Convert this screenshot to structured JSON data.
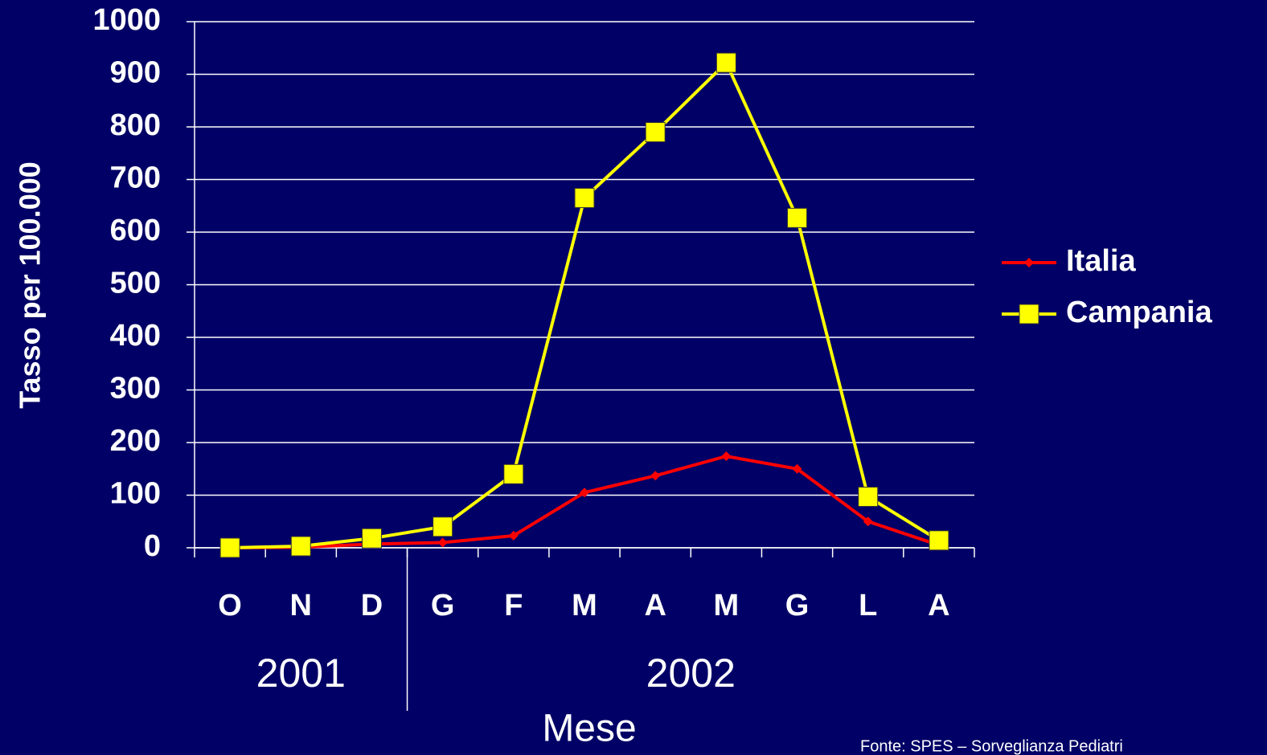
{
  "chart_data": {
    "type": "line",
    "xlabel": "Mese",
    "ylabel": "Tasso per 100.000",
    "categories": [
      "O",
      "N",
      "D",
      "G",
      "F",
      "M",
      "A",
      "M",
      "G",
      "L",
      "A"
    ],
    "groups": [
      {
        "label": "2001",
        "first": 0,
        "last": 2
      },
      {
        "label": "2002",
        "first": 3,
        "last": 10
      }
    ],
    "series": [
      {
        "name": "Italia",
        "color": "#ff0000",
        "marker": "diamond",
        "values": [
          0,
          1,
          7,
          10,
          23,
          105,
          137,
          174,
          150,
          50,
          5
        ]
      },
      {
        "name": "Campania",
        "color": "#ffff00",
        "marker": "square",
        "values": [
          0,
          3,
          18,
          40,
          140,
          665,
          790,
          922,
          627,
          97,
          14
        ]
      }
    ],
    "ylim": [
      0,
      1000
    ],
    "yticks": [
      0,
      100,
      200,
      300,
      400,
      500,
      600,
      700,
      800,
      900,
      1000
    ],
    "grid": true,
    "legend": "right",
    "source": "Fonte: SPES – Sorveglianza Pediatri"
  }
}
